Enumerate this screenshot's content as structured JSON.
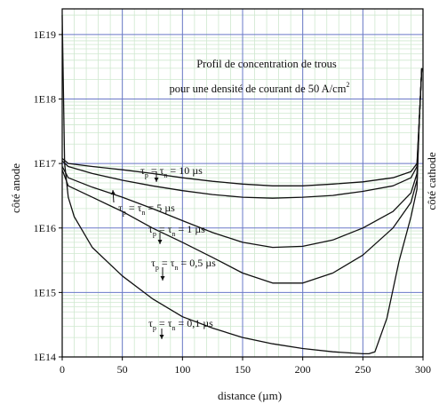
{
  "chart_data": {
    "type": "line",
    "title": "",
    "annotation": {
      "line1": "Profil de concentration de trous",
      "line2_prefix": "pour une densité de courant de 50 A/cm",
      "line2_superscript": "2"
    },
    "xlabel": "distance (µm)",
    "ylabel_left": "côté anode",
    "ylabel_right": "côté cathode",
    "xlim": [
      0,
      300
    ],
    "ylim": [
      100000000000000.0,
      2.5e+19
    ],
    "yscale": "log",
    "x_ticks": [
      0,
      50,
      100,
      150,
      200,
      250,
      300
    ],
    "x_tick_labels": [
      "0",
      "50",
      "100",
      "150",
      "200",
      "250",
      "300"
    ],
    "y_ticks": [
      100000000000000.0,
      1000000000000000.0,
      1e+16,
      1e+17,
      1e+18,
      1e+19
    ],
    "y_tick_labels": [
      "1E14",
      "1E15",
      "1E16",
      "1E17",
      "1E18",
      "1E19"
    ],
    "grid": true,
    "series": [
      {
        "label_parts": [
          "τ",
          "p",
          " = τ",
          "n",
          " = 10 µs"
        ],
        "x": [
          0,
          5,
          25,
          50,
          75,
          100,
          125,
          150,
          175,
          200,
          225,
          250,
          275,
          290,
          295,
          297,
          299
        ],
        "y": [
          1.2e+17,
          1e+17,
          9e+16,
          8e+16,
          7e+16,
          6e+16,
          5.3e+16,
          4.8e+16,
          4.5e+16,
          4.5e+16,
          4.8e+16,
          5.2e+16,
          6e+16,
          7.5e+16,
          1e+17,
          5e+17,
          3e+18
        ]
      },
      {
        "label_parts": [
          "τ",
          "p",
          " = τ",
          "n",
          " = 5 µs"
        ],
        "x": [
          0,
          5,
          25,
          50,
          75,
          100,
          125,
          150,
          175,
          200,
          225,
          250,
          275,
          290,
          295,
          297,
          299
        ],
        "y": [
          1.1e+17,
          9e+16,
          7e+16,
          5.5e+16,
          4.5e+16,
          3.8e+16,
          3.3e+16,
          3e+16,
          2.9e+16,
          3e+16,
          3.2e+16,
          3.7e+16,
          4.5e+16,
          6e+16,
          9e+16,
          5e+17,
          3e+18
        ]
      },
      {
        "label_parts": [
          "τ",
          "p",
          " = τ",
          "n",
          " = 1 µs"
        ],
        "x": [
          0,
          5,
          25,
          50,
          75,
          100,
          125,
          150,
          175,
          200,
          225,
          250,
          275,
          290,
          295,
          297,
          299
        ],
        "y": [
          9e+16,
          6e+16,
          4.3e+16,
          3e+16,
          2e+16,
          1.3e+16,
          8500000000000000.0,
          6000000000000000.0,
          5000000000000000.0,
          5200000000000000.0,
          6500000000000000.0,
          1e+16,
          1.8e+16,
          3.5e+16,
          7e+16,
          5e+17,
          3e+18
        ]
      },
      {
        "label_parts": [
          "τ",
          "p",
          " = τ",
          "n",
          " = 0,5 µs"
        ],
        "x": [
          0,
          5,
          25,
          50,
          75,
          100,
          125,
          150,
          175,
          200,
          225,
          250,
          275,
          290,
          295,
          297,
          299
        ],
        "y": [
          8e+16,
          4.5e+16,
          3e+16,
          1.8e+16,
          1e+16,
          6000000000000000.0,
          3500000000000000.0,
          2000000000000000.0,
          1400000000000000.0,
          1400000000000000.0,
          2000000000000000.0,
          3800000000000000.0,
          1e+16,
          2.5e+16,
          5.5e+16,
          5e+17,
          3e+18
        ]
      },
      {
        "label_parts": [
          "τ",
          "p",
          " = τ",
          "n",
          " = 0,1 µs"
        ],
        "x": [
          0,
          2,
          5,
          10,
          25,
          50,
          75,
          100,
          125,
          150,
          175,
          200,
          225,
          250,
          255,
          260,
          270,
          280,
          290,
          295,
          297,
          299
        ],
        "y": [
          2e+19,
          1e+17,
          3e+16,
          1.5e+16,
          5000000000000000.0,
          1800000000000000.0,
          800000000000000.0,
          420000000000000.0,
          280000000000000.0,
          200000000000000.0,
          160000000000000.0,
          135000000000000.0,
          120000000000000.0,
          112000000000000.0,
          112000000000000.0,
          120000000000000.0,
          400000000000000.0,
          3000000000000000.0,
          1.5e+16,
          4e+16,
          5e+17,
          3e+18
        ]
      }
    ]
  }
}
